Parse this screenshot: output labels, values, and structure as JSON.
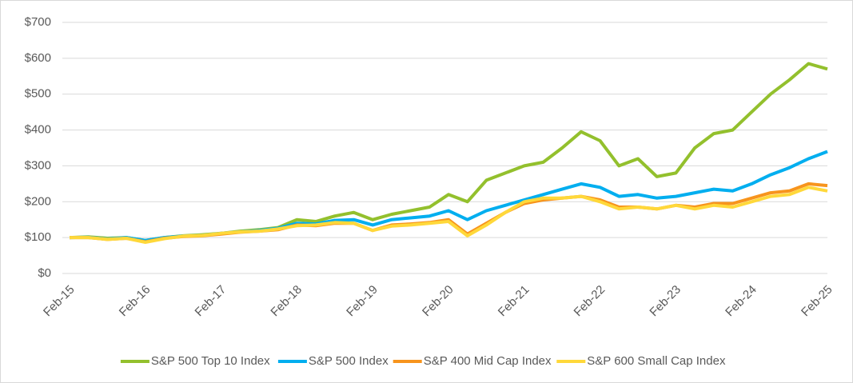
{
  "chart_data": {
    "type": "line",
    "categories": [
      "Feb-15",
      null,
      null,
      null,
      "Feb-16",
      null,
      null,
      null,
      "Feb-17",
      null,
      null,
      null,
      "Feb-18",
      null,
      null,
      null,
      "Feb-19",
      null,
      null,
      null,
      "Feb-20",
      null,
      null,
      null,
      "Feb-21",
      null,
      null,
      null,
      "Feb-22",
      null,
      null,
      null,
      "Feb-23",
      null,
      null,
      null,
      "Feb-24",
      null,
      null,
      null,
      "Feb-25"
    ],
    "series": [
      {
        "name": "S&P 500 Top 10 Index",
        "color": "#93c02d",
        "values": [
          100,
          102,
          98,
          100,
          92,
          100,
          105,
          108,
          112,
          118,
          122,
          128,
          150,
          145,
          160,
          170,
          150,
          165,
          175,
          185,
          220,
          200,
          260,
          280,
          300,
          310,
          350,
          395,
          370,
          300,
          320,
          270,
          280,
          350,
          390,
          400,
          450,
          500,
          540,
          585,
          570
        ]
      },
      {
        "name": "S&P 500 Index",
        "color": "#00aeef",
        "values": [
          100,
          101,
          96,
          100,
          92,
          100,
          104,
          106,
          112,
          116,
          120,
          126,
          140,
          138,
          148,
          150,
          135,
          150,
          155,
          160,
          175,
          150,
          175,
          190,
          205,
          220,
          235,
          250,
          240,
          215,
          220,
          210,
          215,
          225,
          235,
          230,
          250,
          275,
          295,
          320,
          340
        ]
      },
      {
        "name": "S&P 400 Mid Cap Index",
        "color": "#f7941d",
        "values": [
          100,
          100,
          95,
          98,
          88,
          98,
          103,
          105,
          110,
          115,
          118,
          122,
          135,
          133,
          140,
          140,
          120,
          135,
          138,
          142,
          150,
          110,
          140,
          170,
          195,
          205,
          210,
          215,
          205,
          185,
          185,
          180,
          190,
          185,
          195,
          195,
          210,
          225,
          230,
          250,
          245
        ]
      },
      {
        "name": "S&P 600 Small Cap Index",
        "color": "#ffd83a",
        "values": [
          100,
          100,
          95,
          98,
          87,
          97,
          104,
          106,
          112,
          116,
          118,
          124,
          133,
          135,
          142,
          140,
          120,
          132,
          135,
          140,
          145,
          105,
          135,
          170,
          200,
          210,
          210,
          215,
          200,
          180,
          185,
          180,
          190,
          180,
          190,
          185,
          200,
          215,
          220,
          240,
          230
        ]
      }
    ],
    "ylim": [
      0,
      700
    ],
    "yticks": [
      {
        "value": 0,
        "label": "$0"
      },
      {
        "value": 100,
        "label": "$100"
      },
      {
        "value": 200,
        "label": "$200"
      },
      {
        "value": 300,
        "label": "$300"
      },
      {
        "value": 400,
        "label": "$400"
      },
      {
        "value": 500,
        "label": "$500"
      },
      {
        "value": 600,
        "label": "$600"
      },
      {
        "value": 700,
        "label": "$700"
      }
    ],
    "grid": true,
    "legend": "bottom"
  }
}
